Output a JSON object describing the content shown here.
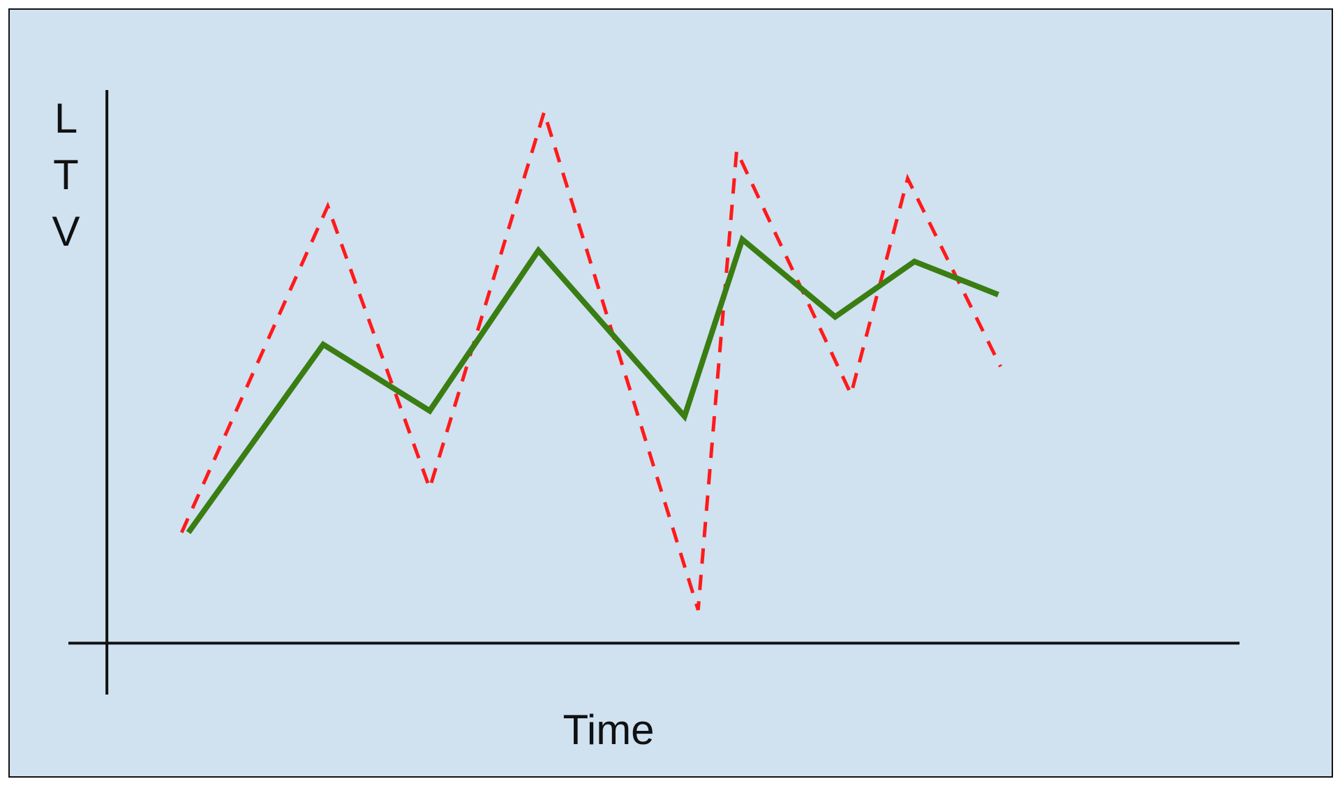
{
  "chart_data": {
    "type": "line",
    "x_label": "Time",
    "y_label": "LTV",
    "xlim": [
      -3.4,
      100
    ],
    "ylim": [
      -9.3,
      100
    ],
    "series": [
      {
        "color": "#ff1a1a",
        "line_style": "dashed",
        "x": [
          6.6,
          19.5,
          28.5,
          38.6,
          52.2,
          55.6,
          65.7,
          70.7,
          78.9
        ],
        "values": [
          20,
          79,
          28,
          96,
          6,
          89,
          45,
          84,
          50
        ]
      },
      {
        "color": "#3a7d12",
        "line_style": "solid",
        "x": [
          7.2,
          19.1,
          28.5,
          38.1,
          51.0,
          56.1,
          64.3,
          71.3,
          78.7
        ],
        "values": [
          20,
          54,
          42,
          71,
          41,
          73,
          59,
          69,
          63
        ]
      }
    ]
  }
}
